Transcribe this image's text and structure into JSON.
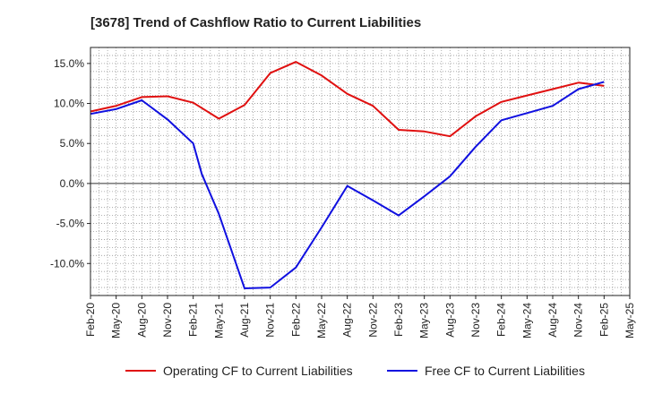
{
  "chart_data": {
    "type": "line",
    "title": "[3678]  Trend of Cashflow Ratio to Current Liabilities",
    "xlabel": "",
    "ylabel": "",
    "x_tick_labels": [
      "Feb-20",
      "May-20",
      "Aug-20",
      "Nov-20",
      "Feb-21",
      "May-21",
      "Aug-21",
      "Nov-21",
      "Feb-22",
      "May-22",
      "Aug-22",
      "Nov-22",
      "Feb-23",
      "May-23",
      "Aug-23",
      "Nov-23",
      "Feb-24",
      "May-24",
      "Aug-24",
      "Nov-24",
      "Feb-25",
      "May-25"
    ],
    "y_ticks": [
      15.0,
      10.0,
      5.0,
      0.0,
      -5.0,
      -10.0
    ],
    "y_tick_labels": [
      "15.0%",
      "10.0%",
      "5.0%",
      "0.0%",
      "-5.0%",
      "-10.0%"
    ],
    "ylim": [
      -14.0,
      17.0
    ],
    "grid": true,
    "legend_position": "bottom",
    "series": [
      {
        "name": "Operating CF to Current Liabilities",
        "color": "#e01010",
        "x": [
          "Feb-20",
          "May-20",
          "Aug-20",
          "Nov-20",
          "Feb-21",
          "May-21",
          "Aug-21",
          "Nov-21",
          "Feb-22",
          "May-22",
          "Aug-22",
          "Nov-22",
          "Feb-23",
          "May-23",
          "Aug-23",
          "Nov-23",
          "Feb-24",
          "May-24",
          "Aug-24",
          "Nov-24",
          "Feb-25"
        ],
        "values": [
          9.0,
          9.7,
          10.8,
          10.9,
          10.1,
          8.1,
          9.8,
          13.8,
          15.2,
          13.5,
          11.2,
          9.7,
          6.7,
          6.5,
          5.9,
          8.4,
          10.2,
          11.0,
          11.8,
          12.6,
          12.2
        ]
      },
      {
        "name": "Free CF to Current Liabilities",
        "color": "#1010e0",
        "x": [
          "Feb-20",
          "May-20",
          "Aug-20",
          "Nov-20",
          "Feb-21",
          "Mar-21",
          "May-21",
          "Aug-21",
          "Nov-21",
          "Feb-22",
          "May-22",
          "Aug-22",
          "Nov-22",
          "Feb-23",
          "May-23",
          "Aug-23",
          "Nov-23",
          "Feb-24",
          "May-24",
          "Aug-24",
          "Nov-24",
          "Feb-25"
        ],
        "values": [
          8.7,
          9.3,
          10.4,
          8.0,
          5.0,
          1.2,
          -3.8,
          -13.1,
          -13.0,
          -10.5,
          -5.5,
          -0.3,
          -2.1,
          -4.0,
          -1.6,
          0.9,
          4.6,
          7.9,
          8.8,
          9.7,
          11.8,
          12.7
        ]
      }
    ]
  }
}
